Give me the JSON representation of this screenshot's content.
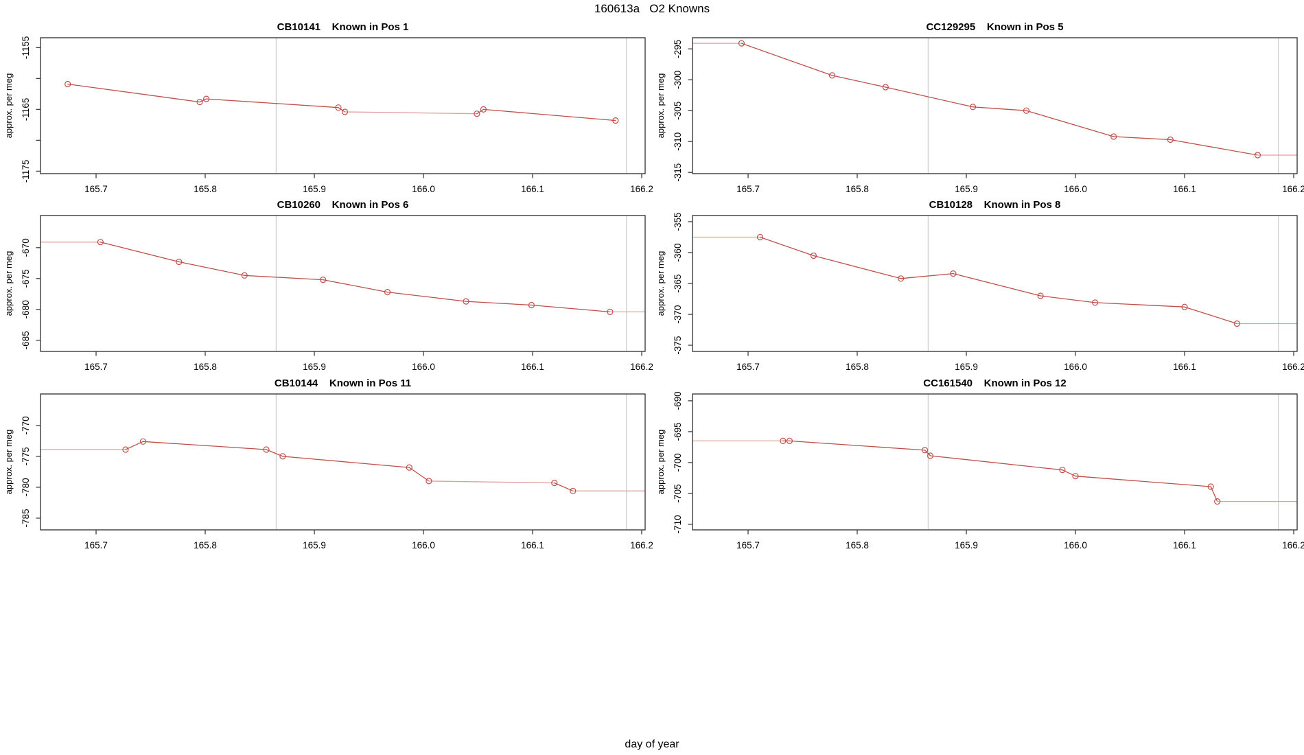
{
  "header": {
    "title": "160613a   O2 Knowns"
  },
  "footer": {
    "xlabel": "day of year"
  },
  "style": {
    "line_color": "#bf4f4a",
    "line_color_light": "#dfa09d",
    "grid_color": "#cccccc",
    "axis_color": "#3c3c3c",
    "text_color": "#000000",
    "background": "#ffffff"
  },
  "axes": {
    "ylabel": "approx. per meg",
    "xlim": [
      165.649,
      166.203
    ],
    "x_ticks": [
      165.7,
      165.8,
      165.9,
      166.0,
      166.1,
      166.2
    ],
    "x_tick_labels": [
      "165.7",
      "165.8",
      "165.9",
      "166.0",
      "166.1",
      "166.2"
    ],
    "gridlines_x": [
      165.865,
      166.186
    ]
  },
  "chart_data": [
    {
      "type": "line",
      "sample_id": "CB10141",
      "position_label": "Known in Pos 1",
      "title": "CB10141    Known in Pos 1",
      "x": [
        165.674,
        165.795,
        165.801,
        165.922,
        165.928,
        166.049,
        166.055,
        166.176
      ],
      "y": [
        -1160.9,
        -1163.8,
        -1163.3,
        -1164.7,
        -1165.4,
        -1165.7,
        -1165.0,
        -1166.8
      ],
      "ylim": [
        -1175.4,
        -1153.4
      ],
      "y_ticks": [
        {
          "v": -1155,
          "label": "-1155"
        },
        {
          "v": -1160,
          "label": ""
        },
        {
          "v": -1165,
          "label": "-1165"
        },
        {
          "v": -1170,
          "label": ""
        },
        {
          "v": -1175,
          "label": "-1175"
        }
      ],
      "flat_from_left": false,
      "flat_to_right": false,
      "light_segments": [
        [
          4,
          5
        ]
      ]
    },
    {
      "type": "line",
      "sample_id": "CC129295",
      "position_label": "Known in Pos 5",
      "title": "CC129295    Known in Pos 5",
      "x": [
        165.694,
        165.777,
        165.826,
        165.906,
        165.955,
        166.035,
        166.087,
        166.167
      ],
      "y": [
        -294.1,
        -299.3,
        -301.2,
        -304.4,
        -305.0,
        -309.2,
        -309.7,
        -312.2
      ],
      "ylim": [
        -315.2,
        -293.2
      ],
      "y_ticks": [
        {
          "v": -295,
          "label": "-295"
        },
        {
          "v": -300,
          "label": "-300"
        },
        {
          "v": -305,
          "label": "-305"
        },
        {
          "v": -310,
          "label": "-310"
        },
        {
          "v": -315,
          "label": "-315"
        }
      ],
      "flat_from_left": true,
      "flat_to_right": true,
      "light_segments": []
    },
    {
      "type": "line",
      "sample_id": "CB10260",
      "position_label": "Known in Pos 6",
      "title": "CB10260    Known in Pos 6",
      "x": [
        165.704,
        165.776,
        165.836,
        165.908,
        165.967,
        166.039,
        166.099,
        166.171
      ],
      "y": [
        -669.1,
        -672.3,
        -674.5,
        -675.2,
        -677.2,
        -678.7,
        -679.3,
        -680.4
      ],
      "ylim": [
        -686.8,
        -664.8
      ],
      "y_ticks": [
        {
          "v": -670,
          "label": "-670"
        },
        {
          "v": -675,
          "label": "-675"
        },
        {
          "v": -680,
          "label": "-680"
        },
        {
          "v": -685,
          "label": "-685"
        }
      ],
      "flat_from_left": true,
      "flat_to_right": true,
      "light_segments": []
    },
    {
      "type": "line",
      "sample_id": "CB10128",
      "position_label": "Known in Pos 8",
      "title": "CB10128    Known in Pos 8",
      "x": [
        165.711,
        165.76,
        165.84,
        165.888,
        165.968,
        166.018,
        166.1,
        166.148
      ],
      "y": [
        -357.5,
        -360.5,
        -364.2,
        -363.4,
        -367.0,
        -368.1,
        -368.8,
        -371.5
      ],
      "ylim": [
        -376.0,
        -354.0
      ],
      "y_ticks": [
        {
          "v": -355,
          "label": "-355"
        },
        {
          "v": -360,
          "label": "-360"
        },
        {
          "v": -365,
          "label": "-365"
        },
        {
          "v": -370,
          "label": "-370"
        },
        {
          "v": -375,
          "label": "-375"
        }
      ],
      "flat_from_left": true,
      "flat_to_right": true,
      "light_segments": []
    },
    {
      "type": "line",
      "sample_id": "CB10144",
      "position_label": "Known in Pos 11",
      "title": "CB10144    Known in Pos 11",
      "x": [
        165.727,
        165.743,
        165.856,
        165.871,
        165.987,
        166.005,
        166.12,
        166.137
      ],
      "y": [
        -773.9,
        -772.6,
        -773.9,
        -775.0,
        -776.8,
        -779.0,
        -779.3,
        -780.6
      ],
      "ylim": [
        -786.9,
        -764.9
      ],
      "y_ticks": [
        {
          "v": -770,
          "label": "-770"
        },
        {
          "v": -775,
          "label": "-775"
        },
        {
          "v": -780,
          "label": "-780"
        },
        {
          "v": -785,
          "label": "-785"
        }
      ],
      "flat_from_left": true,
      "flat_to_right": true,
      "light_segments": [
        [
          5,
          6
        ]
      ]
    },
    {
      "type": "line",
      "sample_id": "CC161540",
      "position_label": "Known in Pos 12",
      "title": "CC161540    Known in Pos 12",
      "x": [
        165.732,
        165.738,
        165.862,
        165.867,
        165.988,
        166.0,
        166.124,
        166.13
      ],
      "y": [
        -696.5,
        -696.5,
        -698.0,
        -698.9,
        -701.2,
        -702.2,
        -703.9,
        -706.3
      ],
      "ylim": [
        -710.9,
        -688.9
      ],
      "y_ticks": [
        {
          "v": -690,
          "label": "-690"
        },
        {
          "v": -695,
          "label": "-695"
        },
        {
          "v": -700,
          "label": "-700"
        },
        {
          "v": -705,
          "label": "-705"
        },
        {
          "v": -710,
          "label": "-710"
        }
      ],
      "flat_from_left": true,
      "flat_to_right": true,
      "light_segments": []
    }
  ]
}
